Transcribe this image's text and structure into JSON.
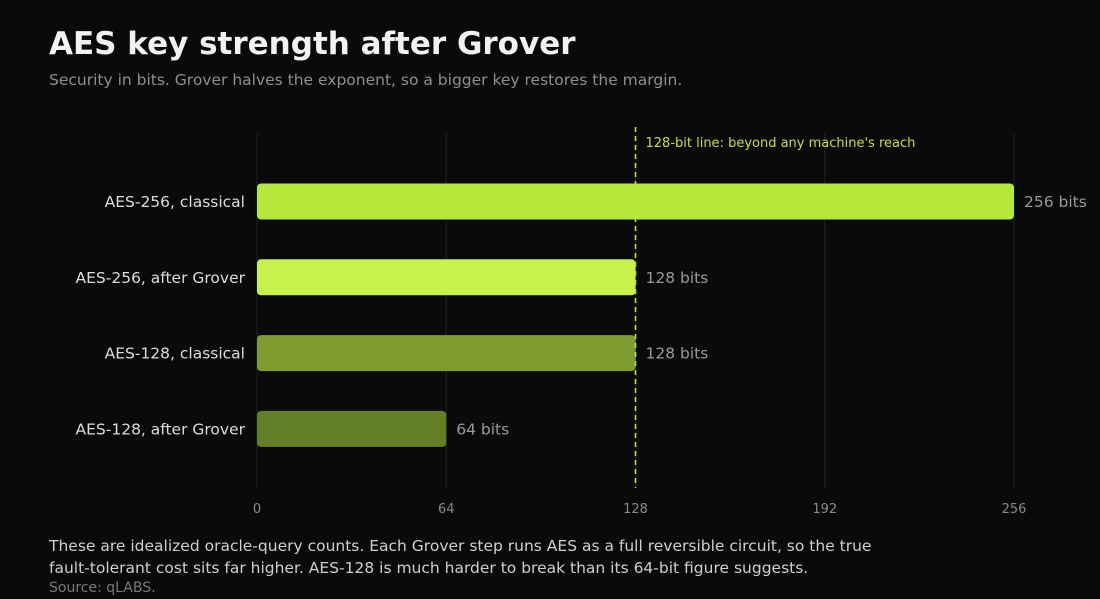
{
  "title": "AES key strength after Grover",
  "subtitle": "Security in bits. Grover halves the exponent, so a bigger key restores the margin.",
  "note": "These are idealized oracle-query counts. Each Grover step runs AES as a full reversible circuit, so the true fault-tolerant cost sits far higher. AES-128 is much harder to break than its 64-bit figure suggests.",
  "source": "Source: qLABS.",
  "chart_data": {
    "type": "bar",
    "orientation": "horizontal",
    "categories": [
      "AES-256, classical",
      "AES-256, after Grover",
      "AES-128, classical",
      "AES-128, after Grover"
    ],
    "values": [
      256,
      128,
      128,
      64
    ],
    "value_labels": [
      "256 bits",
      "128 bits",
      "128 bits",
      "64 bits"
    ],
    "colors": [
      "#b5e83a",
      "#c6f24c",
      "#7f9c30",
      "#627f25"
    ],
    "xlim": [
      0,
      256
    ],
    "xticks": [
      0,
      64,
      128,
      192,
      256
    ],
    "grid": true,
    "reference_line": {
      "value": 128,
      "label": "128-bit line: beyond any machine's reach",
      "color": "#c6e03a"
    },
    "xlabel": "",
    "ylabel": ""
  }
}
